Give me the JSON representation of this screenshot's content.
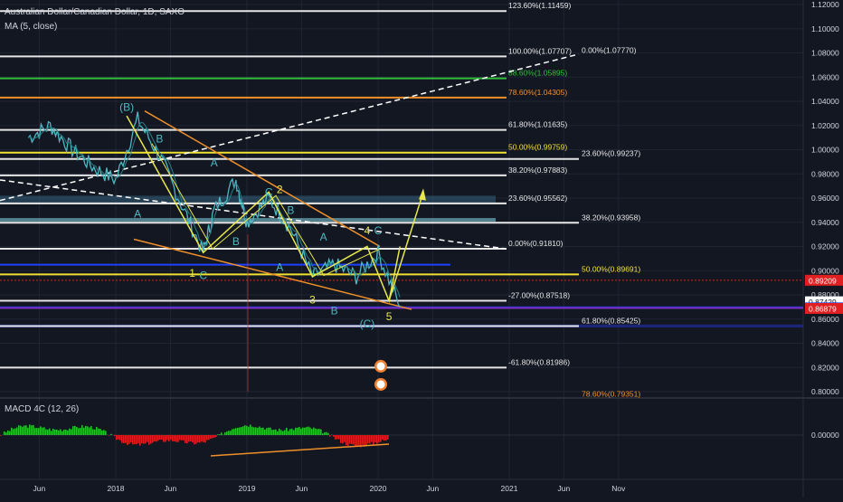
{
  "header": {
    "symbol": "Australian Dollar/Canadian Dollar, 1D, SAXO",
    "indicator": "MA (5, close)"
  },
  "macd": {
    "label": "MACD 4C (12, 26)",
    "zero_label": "0.00000"
  },
  "colors": {
    "bg": "#131722",
    "grid": "#1f2433",
    "price": "#4bb8c2",
    "fib_white": "#e6e6e6",
    "fib_yellow": "#f0e130",
    "fib_orange": "#f0902a",
    "fib_green": "#2fbf3a",
    "wave_yellow": "#e8e84a",
    "channel_orange": "#f0902a",
    "macd_up": "#26c22b",
    "macd_down": "#e02020"
  },
  "chart_data": {
    "type": "line",
    "title": "Australian Dollar/Canadian Dollar, 1D, SAXO",
    "ylim": [
      0.79,
      1.12
    ],
    "y_ticks": [
      "1.12000",
      "1.10000",
      "1.08000",
      "1.06000",
      "1.04000",
      "1.02000",
      "1.00000",
      "0.98000",
      "0.96000",
      "0.94000",
      "0.92000",
      "0.90000",
      "0.88000",
      "0.86000",
      "0.84000",
      "0.82000",
      "0.80000"
    ],
    "x_ticks": [
      "Jun",
      "2018",
      "Jun",
      "2019",
      "Jun",
      "2020",
      "Jun",
      "2021",
      "Jun",
      "Nov"
    ],
    "series": [
      {
        "x": [
          "2017-05",
          "2017-07",
          "2017-09",
          "2017-11",
          "2018-01",
          "2018-03",
          "2018-05",
          "2018-07",
          "2018-09",
          "2018-10",
          "2018-12",
          "2019-01",
          "2019-03",
          "2019-05",
          "2019-07",
          "2019-09",
          "2019-11",
          "2020-01",
          "2020-03"
        ],
        "values": [
          1.01,
          1.02,
          1.0,
          0.985,
          0.975,
          1.025,
          0.995,
          0.955,
          0.915,
          0.95,
          0.975,
          0.94,
          0.96,
          0.935,
          0.895,
          0.905,
          0.895,
          0.915,
          0.87
        ]
      }
    ],
    "fib_levels": [
      {
        "label": "123.60%(1.11459)",
        "value": 1.11459,
        "color": "#e6e6e6"
      },
      {
        "label": "100.00%(1.07707)",
        "value": 1.07707,
        "color": "#e6e6e6"
      },
      {
        "label": "0.00%(1.07770)",
        "value": 1.0777,
        "color": "#e6e6e6"
      },
      {
        "label": "88.60%(1.05895)",
        "value": 1.05895,
        "color": "#2fbf3a"
      },
      {
        "label": "78.60%(1.04305)",
        "value": 1.04305,
        "color": "#f0902a"
      },
      {
        "label": "61.80%(1.01635)",
        "value": 1.01635,
        "color": "#e6e6e6"
      },
      {
        "label": "50.00%(0.99759)",
        "value": 0.99759,
        "color": "#f0e130"
      },
      {
        "label": "23.60%(0.99237)",
        "value": 0.99237,
        "color": "#e6e6e6"
      },
      {
        "label": "38.20%(0.97883)",
        "value": 0.97883,
        "color": "#e6e6e6"
      },
      {
        "label": "23.60%(0.95562)",
        "value": 0.95562,
        "color": "#e6e6e6"
      },
      {
        "label": "38.20%(0.93958)",
        "value": 0.93958,
        "color": "#e6e6e6"
      },
      {
        "label": "0.00%(0.91810)",
        "value": 0.9181,
        "color": "#e6e6e6"
      },
      {
        "label": "50.00%(0.89691)",
        "value": 0.89691,
        "color": "#f0e130"
      },
      {
        "label": "-27.00%(0.87518)",
        "value": 0.87518,
        "color": "#e6e6e6"
      },
      {
        "label": "61.80%(0.85425)",
        "value": 0.85425,
        "color": "#e6e6e6"
      },
      {
        "label": "-61.80%(0.81986)",
        "value": 0.81986,
        "color": "#e6e6e6"
      },
      {
        "label": "78.60%(0.79351)",
        "value": 0.79351,
        "color": "#f0902a"
      }
    ],
    "price_labels": [
      {
        "text": "0.89209",
        "value": 0.89209,
        "bg": "#e02020",
        "fg": "#ffffff"
      },
      {
        "text": "0.87429",
        "value": 0.87429,
        "bg": "#ffffff",
        "fg": "#131722"
      },
      {
        "text": "0.86924",
        "value": 0.86924,
        "bg": "#1e40ff",
        "fg": "#ffffff"
      },
      {
        "text": "0.86879",
        "value": 0.86879,
        "bg": "#e02020",
        "fg": "#ffffff"
      }
    ],
    "wave_labels": [
      {
        "text": "(B)",
        "x": "2018-02",
        "y": 1.032,
        "color": "#4bb8c2"
      },
      {
        "text": "B",
        "x": "2018-05",
        "y": 1.006,
        "color": "#4bb8c2"
      },
      {
        "text": "A",
        "x": "2018-10",
        "y": 0.986,
        "color": "#4bb8c2"
      },
      {
        "text": "A",
        "x": "2018-03",
        "y": 0.944,
        "color": "#4bb8c2"
      },
      {
        "text": "B",
        "x": "2018-12",
        "y": 0.921,
        "color": "#4bb8c2"
      },
      {
        "text": "1",
        "x": "2018-08",
        "y": 0.895,
        "color": "#e8e84a"
      },
      {
        "text": "C",
        "x": "2018-09",
        "y": 0.893,
        "color": "#4bb8c2"
      },
      {
        "text": "C",
        "x": "2019-03",
        "y": 0.962,
        "color": "#4bb8c2"
      },
      {
        "text": "2",
        "x": "2019-04",
        "y": 0.964,
        "color": "#e8e84a"
      },
      {
        "text": "B",
        "x": "2019-05",
        "y": 0.947,
        "color": "#4bb8c2"
      },
      {
        "text": "A",
        "x": "2019-04",
        "y": 0.9,
        "color": "#4bb8c2"
      },
      {
        "text": "A",
        "x": "2019-08",
        "y": 0.925,
        "color": "#4bb8c2"
      },
      {
        "text": "3",
        "x": "2019-07",
        "y": 0.873,
        "color": "#e8e84a"
      },
      {
        "text": "B",
        "x": "2019-09",
        "y": 0.864,
        "color": "#4bb8c2"
      },
      {
        "text": "4",
        "x": "2019-12",
        "y": 0.93,
        "color": "#e8e84a"
      },
      {
        "text": "C",
        "x": "2020-01",
        "y": 0.93,
        "color": "#4bb8c2"
      },
      {
        "text": "5",
        "x": "2020-02",
        "y": 0.859,
        "color": "#e8e84a"
      },
      {
        "text": "(C)",
        "x": "2019-12",
        "y": 0.853,
        "color": "#4bb8c2"
      }
    ]
  }
}
